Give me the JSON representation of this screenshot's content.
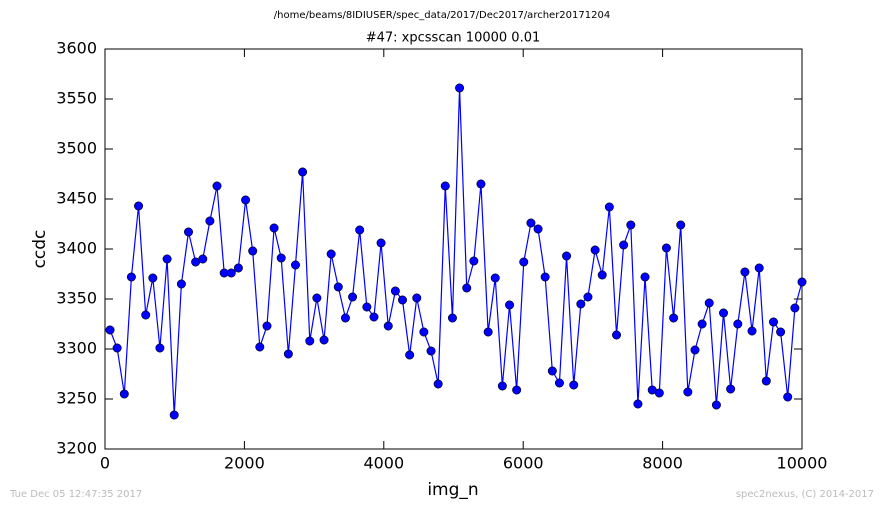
{
  "chart_data": {
    "type": "line",
    "suptitle": "/home/beams/8IDIUSER/spec_data/2017/Dec2017/archer20171204",
    "title": "#47: xpcsscan 10000 0.01",
    "x_label": "img_n",
    "y_label": "ccdc",
    "timestamp": "Tue Dec 05 12:47:35 2017",
    "credit": "spec2nexus, (C) 2014-2017",
    "color": "#0000ff",
    "xlim": [
      0,
      10000
    ],
    "xticks": [
      0,
      2000,
      4000,
      6000,
      8000,
      10000
    ],
    "ylim": [
      3200,
      3600
    ],
    "yticks": [
      3200,
      3250,
      3300,
      3350,
      3400,
      3450,
      3500,
      3550,
      3600
    ],
    "grid": false,
    "x": [
      72,
      174,
      277,
      379,
      481,
      584,
      686,
      788,
      891,
      993,
      1096,
      1198,
      1300,
      1403,
      1505,
      1607,
      1710,
      1812,
      1914,
      2017,
      2119,
      2221,
      2324,
      2426,
      2528,
      2631,
      2733,
      2835,
      2938,
      3040,
      3143,
      3245,
      3347,
      3450,
      3552,
      3654,
      3757,
      3859,
      3961,
      4064,
      4166,
      4268,
      4371,
      4473,
      4575,
      4678,
      4780,
      4882,
      4985,
      5087,
      5190,
      5292,
      5394,
      5497,
      5599,
      5701,
      5804,
      5906,
      6008,
      6111,
      6213,
      6315,
      6418,
      6520,
      6622,
      6725,
      6827,
      6929,
      7032,
      7134,
      7236,
      7339,
      7441,
      7544,
      7646,
      7748,
      7851,
      7953,
      8055,
      8158,
      8260,
      8362,
      8465,
      8567,
      8669,
      8772,
      8874,
      8976,
      9079,
      9181,
      9283,
      9386,
      9488,
      9591,
      9693,
      9795,
      9898,
      10000
    ],
    "values": [
      3319,
      3301,
      3255,
      3372,
      3443,
      3334,
      3371,
      3301,
      3390,
      3234,
      3365,
      3417,
      3387,
      3390,
      3428,
      3463,
      3376,
      3376,
      3381,
      3449,
      3398,
      3302,
      3323,
      3421,
      3391,
      3295,
      3384,
      3477,
      3308,
      3351,
      3309,
      3395,
      3362,
      3331,
      3352,
      3419,
      3342,
      3332,
      3406,
      3323,
      3358,
      3349,
      3294,
      3351,
      3317,
      3298,
      3265,
      3463,
      3331,
      3561,
      3361,
      3388,
      3465,
      3317,
      3371,
      3263,
      3344,
      3259,
      3387,
      3426,
      3420,
      3372,
      3278,
      3266,
      3393,
      3264,
      3345,
      3352,
      3399,
      3374,
      3442,
      3314,
      3404,
      3424,
      3245,
      3372,
      3259,
      3256,
      3401,
      3331,
      3424,
      3257,
      3299,
      3325,
      3346,
      3244,
      3336,
      3260,
      3325,
      3377,
      3318,
      3381,
      3268,
      3327,
      3317,
      3252,
      3341,
      3367
    ]
  }
}
